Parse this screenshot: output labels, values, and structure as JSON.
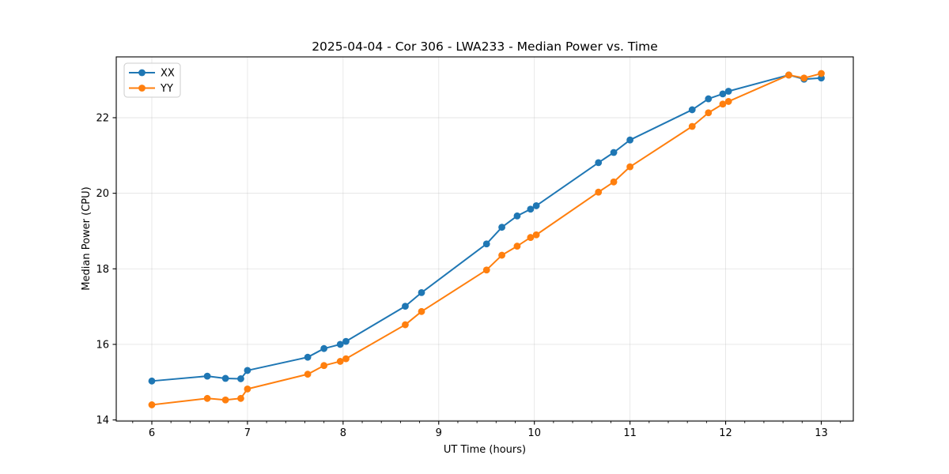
{
  "figure": {
    "title": "2025-04-04 - Cor 306 - LWA233 - Median Power vs. Time",
    "xlabel": "UT Time (hours)",
    "ylabel": "Median Power (CPU)"
  },
  "legend": {
    "position": "upper left",
    "items": [
      {
        "label": "XX",
        "color": "#1f77b4"
      },
      {
        "label": "YY",
        "color": "#ff7f0e"
      }
    ]
  },
  "chart_data": {
    "type": "line",
    "title": "2025-04-04 - Cor 306 - LWA233 - Median Power vs. Time",
    "xlabel": "UT Time (hours)",
    "ylabel": "Median Power (CPU)",
    "x": [
      6.0,
      6.58,
      6.77,
      6.93,
      7.0,
      7.63,
      7.8,
      7.97,
      8.03,
      8.65,
      8.82,
      9.5,
      9.66,
      9.82,
      9.96,
      10.02,
      10.67,
      10.83,
      11.0,
      11.65,
      11.82,
      11.97,
      12.03,
      12.66,
      12.82,
      13.0
    ],
    "series": [
      {
        "name": "XX",
        "color": "#1f77b4",
        "marker": "circle",
        "values": [
          15.03,
          15.16,
          15.1,
          15.09,
          15.31,
          15.66,
          15.89,
          16.0,
          16.08,
          17.01,
          17.37,
          18.66,
          19.1,
          19.4,
          19.58,
          19.67,
          20.81,
          21.08,
          21.41,
          22.21,
          22.5,
          22.63,
          22.7,
          23.13,
          23.02,
          23.05
        ]
      },
      {
        "name": "YY",
        "color": "#ff7f0e",
        "marker": "circle",
        "values": [
          14.4,
          14.57,
          14.53,
          14.57,
          14.82,
          15.21,
          15.44,
          15.55,
          15.62,
          16.52,
          16.87,
          17.97,
          18.36,
          18.6,
          18.83,
          18.9,
          20.03,
          20.3,
          20.7,
          21.77,
          22.13,
          22.36,
          22.43,
          23.13,
          23.05,
          23.17
        ]
      }
    ],
    "xlim": [
      5.628,
      13.335
    ],
    "ylim": [
      13.97,
      23.61
    ],
    "x_ticks": [
      6,
      7,
      8,
      9,
      10,
      11,
      12,
      13
    ],
    "x_minor_tick_step": 0.2,
    "y_ticks": [
      14,
      16,
      18,
      20,
      22
    ],
    "grid": true,
    "legend_position": "upper left",
    "colors": {
      "grid": "#b0b0b0",
      "spine": "#000000",
      "background": "#ffffff"
    }
  }
}
